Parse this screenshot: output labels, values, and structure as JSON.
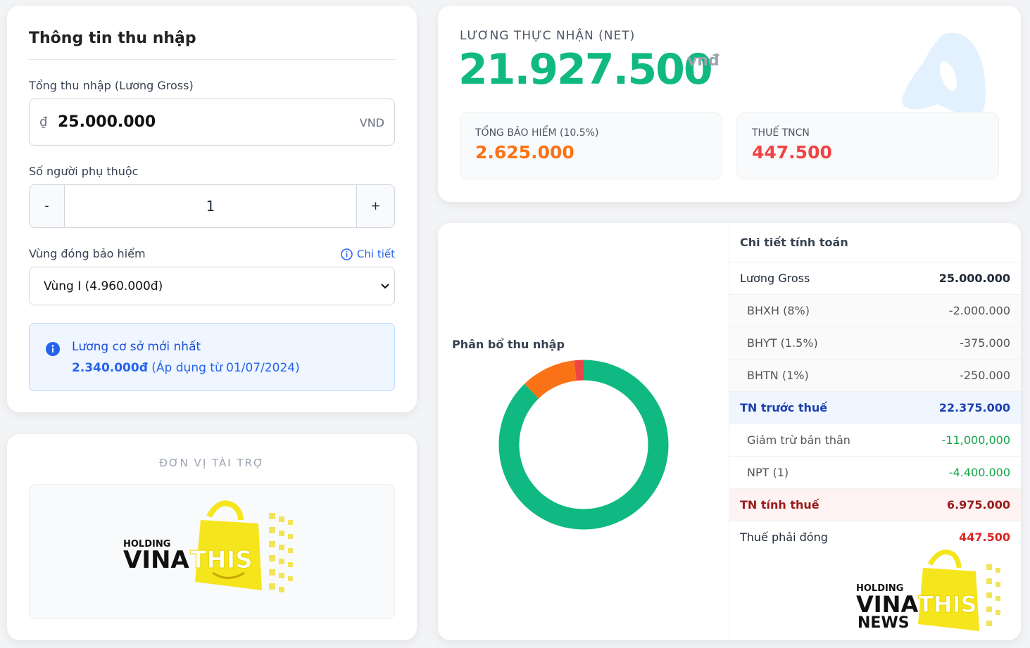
{
  "income_form": {
    "title": "Thông tin thu nhập",
    "gross_label": "Tổng thu nhập (Lương Gross)",
    "currency_symbol": "₫",
    "gross_value": "25.000.000",
    "unit": "VND",
    "dependents_label": "Số người phụ thuộc",
    "minus": "-",
    "dependents_value": "1",
    "plus": "+",
    "region_label": "Vùng đóng bảo hiểm",
    "detail_link": "Chi tiết",
    "region_value": "Vùng I (4.960.000đ)",
    "notice_title": "Lương cơ sở mới nhất",
    "notice_amount": "2.340.000đ",
    "notice_note": "(Áp dụng từ 01/07/2024)"
  },
  "sponsor": {
    "title": "ĐƠN VỊ TÀI TRỢ",
    "logo": {
      "top": "HOLDING",
      "left": "VINA",
      "right": "THIS"
    }
  },
  "summary": {
    "label": "LƯƠNG THỰC NHẬN (NET)",
    "net": "21.927.500",
    "unit": "vnđ",
    "insurance_label": "TỔNG BẢO HIỂM (10.5%)",
    "insurance": "2.625.000",
    "tax_label": "THUẾ TNCN",
    "tax": "447.500"
  },
  "chart_data": {
    "type": "donut",
    "title": "Phân bổ thu nhập",
    "values": [
      21927500,
      2625000,
      447500
    ],
    "colors": [
      "#10b981",
      "#f97316",
      "#ef4444"
    ]
  },
  "details": {
    "title": "Chi tiết tính toán",
    "rows": [
      {
        "label": "Lương Gross",
        "value": "25.000.000"
      },
      {
        "label": "BHXH (8%)",
        "value": "-2.000.000"
      },
      {
        "label": "BHYT (1.5%)",
        "value": "-375.000"
      },
      {
        "label": "BHTN (1%)",
        "value": "-250.000"
      },
      {
        "label": "TN trước thuế",
        "value": "22.375.000"
      },
      {
        "label": "Giảm trừ bản thân",
        "value": "-11,000,000"
      },
      {
        "label": "NPT (1)",
        "value": "-4.400.000"
      },
      {
        "label": "TN tính thuế",
        "value": "6.975.000"
      },
      {
        "label": "Thuế phải đóng",
        "value": "447.500"
      }
    ]
  },
  "watermark": {
    "top": "HOLDING",
    "left": "VINA",
    "right": "THIS",
    "bottom": "NEWS"
  }
}
